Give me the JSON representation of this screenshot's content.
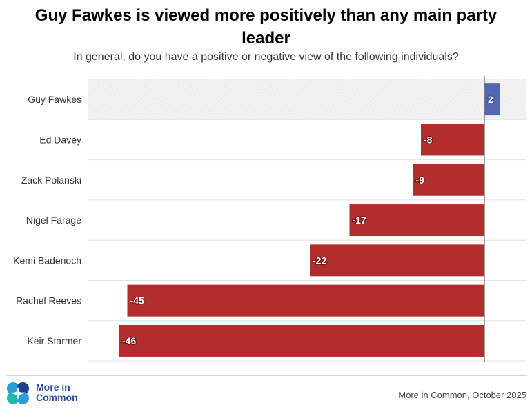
{
  "title": "Guy Fawkes is viewed more positively than any main party leader",
  "subtitle": "In general, do you have a positive or negative view of the following individuals?",
  "logo_text": {
    "line1": "More in",
    "line2": "Common"
  },
  "source": "More in Common, October 2025",
  "colors": {
    "positive": "#5466b0",
    "negative": "#b22e2e",
    "highlight_band": "#f2f2f2",
    "zero_line": "#7a7a7a"
  },
  "chart_data": {
    "type": "bar",
    "orientation": "horizontal",
    "categories": [
      "Guy Fawkes",
      "Ed Davey",
      "Zack Polanski",
      "Nigel Farage",
      "Kemi Badenoch",
      "Rachel Reeves",
      "Keir Starmer"
    ],
    "values": [
      2,
      -8,
      -9,
      -17,
      -22,
      -45,
      -46
    ],
    "data_labels": [
      "2",
      "-8",
      "-9",
      "-17",
      "-22",
      "-45",
      "-46"
    ],
    "highlighted_category": "Guy Fawkes",
    "xlim": [
      -48,
      5
    ],
    "grid": false,
    "legend": "none"
  }
}
